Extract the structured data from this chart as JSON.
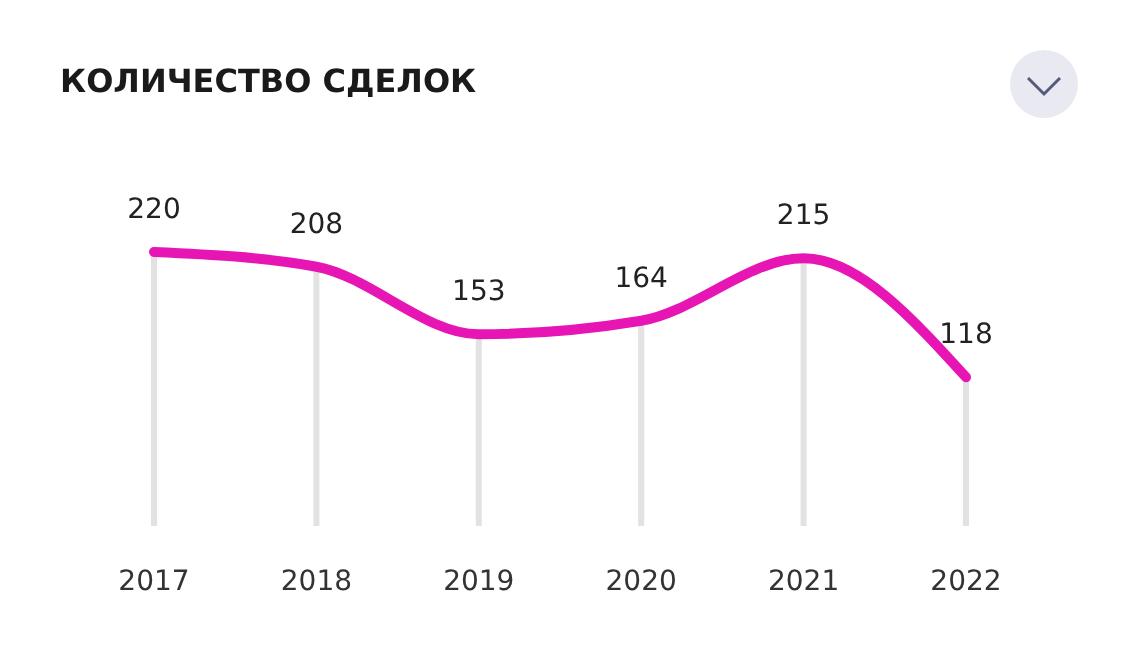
{
  "chart_data": {
    "type": "line",
    "title": "КОЛИЧЕСТВО СДЕЛОК",
    "categories": [
      "2017",
      "2018",
      "2019",
      "2020",
      "2021",
      "2022"
    ],
    "series": [
      {
        "color": "#e815b5",
        "values": [
          220,
          208,
          153,
          164,
          215,
          118
        ]
      }
    ],
    "data_labels": true,
    "grid": "x",
    "marker": "none",
    "line_style": "solid"
  }
}
